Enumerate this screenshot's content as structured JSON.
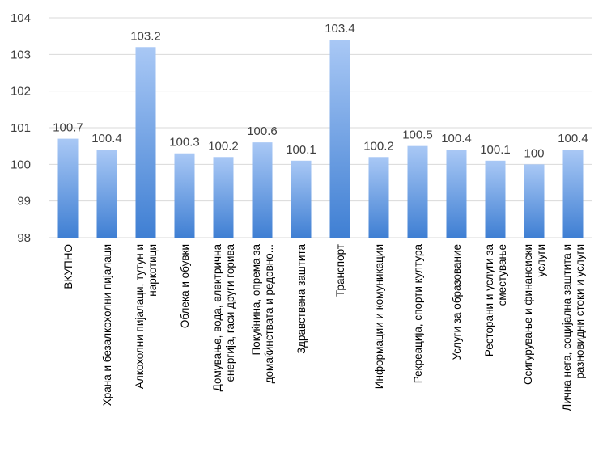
{
  "chart_data": {
    "type": "bar",
    "categories": [
      [
        "ВКУПНО"
      ],
      [
        "Храна и безалкохолни пијалаци"
      ],
      [
        "Алкохолни пијалаци, тутун и",
        "наркотици"
      ],
      [
        "Облека и обувки"
      ],
      [
        "Домување, вода, електрична",
        "енергија, гаси други горива"
      ],
      [
        "Покуќнина, опрема за",
        "домаќинствата и редовно..."
      ],
      [
        "Здравствена заштита"
      ],
      [
        "Транспорт"
      ],
      [
        "Информации и комуникации"
      ],
      [
        "Рекреација, спорти култура"
      ],
      [
        "Услуги за образование"
      ],
      [
        "Ресторани и услуги за",
        "сместување"
      ],
      [
        "Осигурување и финансиски",
        "услуги"
      ],
      [
        "Лична нега, социјална заштита и",
        "разновидни стоки и услуги"
      ]
    ],
    "values": [
      100.7,
      100.4,
      103.2,
      100.3,
      100.2,
      100.6,
      100.1,
      103.4,
      100.2,
      100.5,
      100.4,
      100.1,
      100,
      100.4
    ],
    "value_labels": [
      "100.7",
      "100.4",
      "103.2",
      "100.3",
      "100.2",
      "100.6",
      "100.1",
      "103.4",
      "100.2",
      "100.5",
      "100.4",
      "100.1",
      "100",
      "100.4"
    ],
    "ylim": [
      98,
      104
    ],
    "yticks": [
      "98",
      "99",
      "100",
      "101",
      "102",
      "103",
      "104"
    ],
    "grid": true,
    "legend": "none",
    "colors": {
      "bar_top": "#a9c8f5",
      "bar_bottom": "#3f7fd3",
      "grid": "#d9d9d9",
      "text": "#404040"
    }
  }
}
